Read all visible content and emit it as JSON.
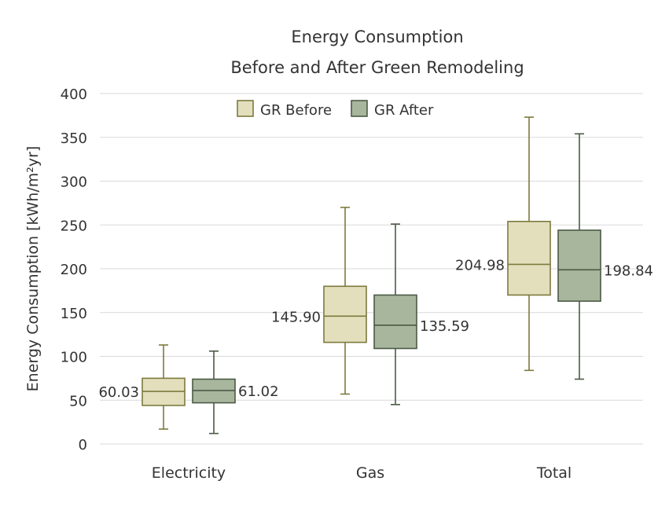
{
  "chart_data": {
    "type": "boxplot",
    "title": "Energy Consumption",
    "subtitle": "Before and After Green Remodeling",
    "ylabel": "Energy Consumption [kWh/m²yr]",
    "xlabel": "",
    "ylim": [
      0,
      400
    ],
    "yticks": [
      0,
      50,
      100,
      150,
      200,
      250,
      300,
      350,
      400
    ],
    "grid": true,
    "legend_position": "top-center",
    "categories": [
      "Electricity",
      "Gas",
      "Total"
    ],
    "series": [
      {
        "name": "GR Before",
        "color": "#e3dfbd",
        "stroke": "#7d7a3e",
        "boxes": [
          {
            "min": 17,
            "q1": 44,
            "median": 60.03,
            "q3": 75,
            "max": 113,
            "label": "60.03"
          },
          {
            "min": 57,
            "q1": 116,
            "median": 145.9,
            "q3": 180,
            "max": 270,
            "label": "145.90"
          },
          {
            "min": 84,
            "q1": 170,
            "median": 204.98,
            "q3": 254,
            "max": 373,
            "label": "204.98"
          }
        ]
      },
      {
        "name": "GR After",
        "color": "#a9b69e",
        "stroke": "#4b5a45",
        "boxes": [
          {
            "min": 12,
            "q1": 47,
            "median": 61.02,
            "q3": 74,
            "max": 106,
            "label": "61.02"
          },
          {
            "min": 45,
            "q1": 109,
            "median": 135.59,
            "q3": 170,
            "max": 251,
            "label": "135.59"
          },
          {
            "min": 74,
            "q1": 163,
            "median": 198.84,
            "q3": 244,
            "max": 354,
            "label": "198.84"
          }
        ]
      }
    ]
  }
}
